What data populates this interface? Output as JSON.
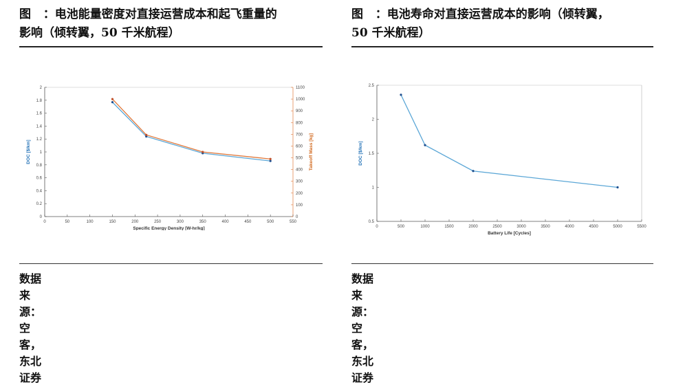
{
  "left": {
    "caption_line1": "图   ：电池能量密度对直接运营成本和起飞重量的",
    "caption_line2": "影响（倾转翼，50 千米航程）",
    "source": "数据来源：空客，  东北证券"
  },
  "right": {
    "caption_line1": "图   ：电池寿命对直接运营成本的影响（倾转翼，",
    "caption_line2": "50 千米航程）",
    "source": "数据来源：空客，  东北证券"
  },
  "colors": {
    "doc": "#5aa6d6",
    "mass": "#e0783a",
    "axis": "#555555",
    "doc_label": "#1f6fb5",
    "mass_label": "#d2691e"
  },
  "chart_data": [
    {
      "type": "line",
      "xlabel": "Specific Energy Density [W-hr/kg]",
      "ylabel": "DOC [$/km]",
      "y2label": "Takeoff Mass [kg]",
      "xlim": [
        0,
        550
      ],
      "ylim": [
        0,
        2
      ],
      "y2lim": [
        0,
        1100
      ],
      "xticks": [
        "0",
        "50",
        "100",
        "150",
        "200",
        "250",
        "300",
        "350",
        "400",
        "450",
        "500",
        "550"
      ],
      "yticks": [
        "0",
        "0.2",
        "0.4",
        "0.6",
        "0.8",
        "1",
        "1.2",
        "1.4",
        "1.6",
        "1.8",
        "2"
      ],
      "y2ticks": [
        "0",
        "100",
        "200",
        "300",
        "400",
        "500",
        "600",
        "700",
        "800",
        "900",
        "1000",
        "1100"
      ],
      "grid": false,
      "series": [
        {
          "axis": "left",
          "x": [
            150,
            225,
            350,
            500
          ],
          "values": [
            1.77,
            1.24,
            0.98,
            0.86
          ]
        },
        {
          "axis": "right",
          "x": [
            150,
            225,
            350,
            500
          ],
          "values": [
            1000,
            695,
            550,
            490
          ]
        }
      ]
    },
    {
      "type": "line",
      "xlabel": "Battery Life [Cycles]",
      "ylabel": "DOC [$/km]",
      "xlim": [
        0,
        5500
      ],
      "ylim": [
        0.5,
        2.5
      ],
      "xticks": [
        "0",
        "500",
        "1000",
        "1500",
        "2000",
        "2500",
        "3000",
        "3500",
        "4000",
        "4500",
        "5000",
        "5500"
      ],
      "yticks": [
        "0.5",
        "1",
        "1.5",
        "2",
        "2.5"
      ],
      "grid": false,
      "series": [
        {
          "axis": "left",
          "x": [
            500,
            1000,
            2000,
            5000
          ],
          "values": [
            2.36,
            1.62,
            1.24,
            1.0
          ]
        }
      ]
    }
  ]
}
